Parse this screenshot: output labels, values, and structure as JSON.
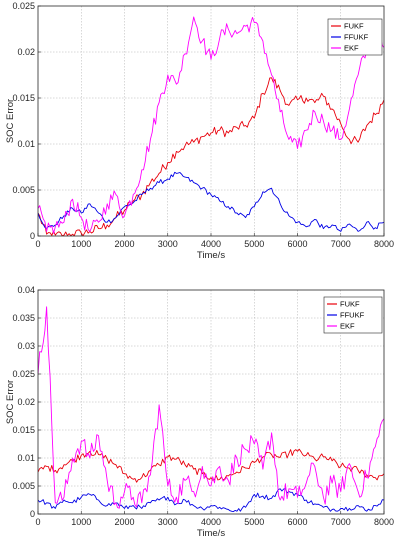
{
  "chart_data": [
    {
      "type": "line",
      "xlabel": "Time/s",
      "ylabel": "SOC Error",
      "xlim": [
        0,
        8000
      ],
      "ylim": [
        0,
        0.025
      ],
      "xticks": [
        "0",
        "1000",
        "2000",
        "3000",
        "4000",
        "5000",
        "6000",
        "7000",
        "8000"
      ],
      "yticks": [
        "0",
        "0.005",
        "0.01",
        "0.015",
        "0.02",
        "0.025"
      ],
      "grid": true,
      "legend_position": "top-right",
      "x": [
        0,
        200,
        400,
        600,
        800,
        1000,
        1200,
        1400,
        1600,
        1800,
        2000,
        2200,
        2400,
        2600,
        2800,
        3000,
        3200,
        3400,
        3600,
        3800,
        4000,
        4200,
        4400,
        4600,
        4800,
        5000,
        5200,
        5400,
        5600,
        5800,
        6000,
        6200,
        6400,
        6600,
        6800,
        7000,
        7200,
        7400,
        7600,
        7800,
        8000
      ],
      "series": [
        {
          "name": "FUKF",
          "color": "#e8000b",
          "values": [
            0.0025,
            0.0002,
            0.0001,
            0.0001,
            0.0002,
            0.0003,
            0.0005,
            0.0008,
            0.0012,
            0.002,
            0.0028,
            0.0038,
            0.0045,
            0.0058,
            0.0068,
            0.008,
            0.0092,
            0.0098,
            0.0102,
            0.0108,
            0.0112,
            0.0115,
            0.0112,
            0.0118,
            0.012,
            0.0128,
            0.0155,
            0.0172,
            0.0158,
            0.0142,
            0.0148,
            0.015,
            0.0145,
            0.0152,
            0.0138,
            0.0122,
            0.0105,
            0.0102,
            0.012,
            0.0132,
            0.0148
          ]
        },
        {
          "name": "FFUKF",
          "color": "#0000e6",
          "values": [
            0.0025,
            0.0008,
            0.0012,
            0.0022,
            0.003,
            0.0025,
            0.0035,
            0.0025,
            0.0015,
            0.002,
            0.0032,
            0.0036,
            0.0045,
            0.0052,
            0.0058,
            0.0062,
            0.0068,
            0.0064,
            0.0058,
            0.0052,
            0.0045,
            0.0038,
            0.0032,
            0.0025,
            0.002,
            0.0032,
            0.0048,
            0.0052,
            0.0035,
            0.0022,
            0.0015,
            0.001,
            0.0018,
            0.0008,
            0.0012,
            0.0005,
            0.0013,
            0.0005,
            0.0015,
            0.0009,
            0.0015
          ]
        },
        {
          "name": "EKF",
          "color": "#ff00ff",
          "values": [
            0.003,
            0.0005,
            0.001,
            0.0015,
            0.004,
            0.002,
            0.0005,
            0.0015,
            0.0035,
            0.0045,
            0.0022,
            0.0045,
            0.0072,
            0.0105,
            0.0145,
            0.0175,
            0.0165,
            0.0198,
            0.0238,
            0.0212,
            0.0192,
            0.0215,
            0.0225,
            0.022,
            0.0228,
            0.0232,
            0.0212,
            0.0175,
            0.0135,
            0.0105,
            0.0095,
            0.0115,
            0.0135,
            0.0125,
            0.0115,
            0.0105,
            0.0138,
            0.0175,
            0.0202,
            0.0215,
            0.0205
          ]
        }
      ]
    },
    {
      "type": "line",
      "xlabel": "Time/s",
      "ylabel": "SOC Error",
      "xlim": [
        0,
        8000
      ],
      "ylim": [
        0,
        0.04
      ],
      "xticks": [
        "0",
        "1000",
        "2000",
        "3000",
        "4000",
        "5000",
        "6000",
        "7000",
        "8000"
      ],
      "yticks": [
        "0",
        "0.005",
        "0.01",
        "0.015",
        "0.02",
        "0.025",
        "0.03",
        "0.035",
        "0.04"
      ],
      "grid": true,
      "legend_position": "top-right",
      "x": [
        0,
        200,
        400,
        600,
        800,
        1000,
        1200,
        1400,
        1600,
        1800,
        2000,
        2200,
        2400,
        2600,
        2800,
        3000,
        3200,
        3400,
        3600,
        3800,
        4000,
        4200,
        4400,
        4600,
        4800,
        5000,
        5200,
        5400,
        5600,
        5800,
        6000,
        6200,
        6400,
        6600,
        6800,
        7000,
        7200,
        7400,
        7600,
        7800,
        8000
      ],
      "series": [
        {
          "name": "FUKF",
          "color": "#e8000b",
          "values": [
            0.0075,
            0.0085,
            0.0078,
            0.0088,
            0.0095,
            0.0105,
            0.0112,
            0.0106,
            0.0098,
            0.0088,
            0.0072,
            0.0062,
            0.0065,
            0.0078,
            0.0088,
            0.0102,
            0.0098,
            0.0088,
            0.008,
            0.0072,
            0.0065,
            0.0062,
            0.0068,
            0.0075,
            0.0082,
            0.0092,
            0.0102,
            0.0106,
            0.0101,
            0.0108,
            0.0112,
            0.0105,
            0.0098,
            0.0102,
            0.0095,
            0.0085,
            0.0082,
            0.0078,
            0.007,
            0.0065,
            0.0072
          ]
        },
        {
          "name": "FFUKF",
          "color": "#0000e6",
          "values": [
            0.0025,
            0.002,
            0.001,
            0.0025,
            0.002,
            0.003,
            0.0035,
            0.0025,
            0.0015,
            0.002,
            0.001,
            0.0015,
            0.001,
            0.002,
            0.0025,
            0.003,
            0.0018,
            0.0025,
            0.0015,
            0.001,
            0.0015,
            0.0012,
            0.0008,
            0.0005,
            0.0012,
            0.0035,
            0.0032,
            0.0028,
            0.0045,
            0.004,
            0.0035,
            0.0025,
            0.0018,
            0.0012,
            0.0008,
            0.001,
            0.001,
            0.0015,
            0.0005,
            0.0015,
            0.0025
          ]
        },
        {
          "name": "EKF",
          "color": "#ff00ff",
          "values": [
            0.025,
            0.037,
            0.002,
            0.003,
            0.01,
            0.013,
            0.01,
            0.014,
            0.006,
            0.002,
            0.004,
            0.003,
            0.002,
            0.007,
            0.0195,
            0.005,
            0.003,
            0.006,
            0.004,
            0.0085,
            0.005,
            0.0085,
            0.006,
            0.01,
            0.0115,
            0.0125,
            0.008,
            0.0145,
            0.0025,
            0.0045,
            0.003,
            0.0055,
            0.0085,
            0.003,
            0.0055,
            0.004,
            0.009,
            0.004,
            0.0065,
            0.012,
            0.017
          ]
        }
      ]
    }
  ]
}
